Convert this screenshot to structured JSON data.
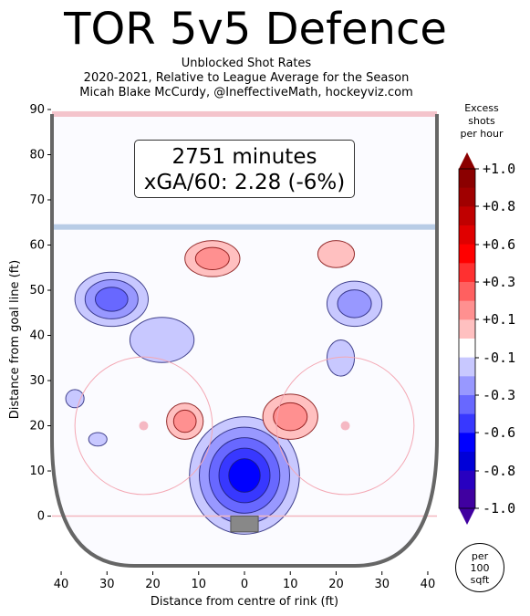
{
  "title": "TOR 5v5 Defence",
  "subtitle_lines": [
    "Unblocked Shot Rates",
    "2020-2021, Relative to League Average for the Season",
    "Micah Blake McCurdy, @IneffectiveMath, hockeyviz.com"
  ],
  "info": {
    "minutes": "2751 minutes",
    "xga": "xGA/60: 2.28 (-6%)"
  },
  "colorbar": {
    "title_lines": [
      "Excess",
      "shots",
      "per hour"
    ],
    "tick_labels": [
      "+1.0",
      "+0.8",
      "+0.6",
      "+0.3",
      "+0.1",
      "-0.1",
      "-0.3",
      "-0.6",
      "-0.8",
      "-1.0"
    ],
    "colors_top_to_bottom": [
      "#8b0000",
      "#a00000",
      "#c00000",
      "#e00000",
      "#ff0000",
      "#ff3030",
      "#ff6060",
      "#ff9090",
      "#ffc0c0",
      "#ffffff",
      "#c8c8ff",
      "#9898ff",
      "#6868ff",
      "#3838ff",
      "#0000ff",
      "#0000d8",
      "#2800c0",
      "#4000a0"
    ]
  },
  "scale_note_lines": [
    "per",
    "100",
    "sqft"
  ],
  "chart_data": {
    "type": "heatmap",
    "xlabel": "Distance from centre of rink (ft)",
    "ylabel": "Distance from goal line (ft)",
    "xlim": [
      -42,
      42
    ],
    "ylim": [
      -11,
      90
    ],
    "xticks": [
      {
        "v": -40,
        "label": "40"
      },
      {
        "v": -30,
        "label": "30"
      },
      {
        "v": -20,
        "label": "20"
      },
      {
        "v": -10,
        "label": "10"
      },
      {
        "v": 0,
        "label": "0"
      },
      {
        "v": 10,
        "label": "10"
      },
      {
        "v": 20,
        "label": "20"
      },
      {
        "v": 30,
        "label": "30"
      },
      {
        "v": 40,
        "label": "40"
      }
    ],
    "yticks": [
      0,
      10,
      20,
      30,
      40,
      50,
      60,
      70,
      80,
      90
    ],
    "blobs": [
      {
        "kind": "blue",
        "level": 0.9,
        "cx": 0,
        "cy": 9,
        "rx": 12,
        "ry": 13
      },
      {
        "kind": "blue",
        "level": 0.55,
        "cx": -29,
        "cy": 48,
        "rx": 8,
        "ry": 6
      },
      {
        "kind": "blue",
        "level": 0.35,
        "cx": 24,
        "cy": 47,
        "rx": 6,
        "ry": 5
      },
      {
        "kind": "blue",
        "level": 0.2,
        "cx": -18,
        "cy": 39,
        "rx": 7,
        "ry": 5
      },
      {
        "kind": "blue",
        "level": 0.2,
        "cx": 21,
        "cy": 35,
        "rx": 3,
        "ry": 4
      },
      {
        "kind": "blue",
        "level": 0.15,
        "cx": -37,
        "cy": 26,
        "rx": 2,
        "ry": 2
      },
      {
        "kind": "blue",
        "level": 0.15,
        "cx": -32,
        "cy": 17,
        "rx": 2,
        "ry": 1.5
      },
      {
        "kind": "red",
        "level": 0.45,
        "cx": -13,
        "cy": 21,
        "rx": 4,
        "ry": 4
      },
      {
        "kind": "red",
        "level": 0.45,
        "cx": 10,
        "cy": 22,
        "rx": 6,
        "ry": 5
      },
      {
        "kind": "red",
        "level": 0.4,
        "cx": -7,
        "cy": 57,
        "rx": 6,
        "ry": 4
      },
      {
        "kind": "red",
        "level": 0.35,
        "cx": 20,
        "cy": 58,
        "rx": 4,
        "ry": 3
      }
    ]
  }
}
